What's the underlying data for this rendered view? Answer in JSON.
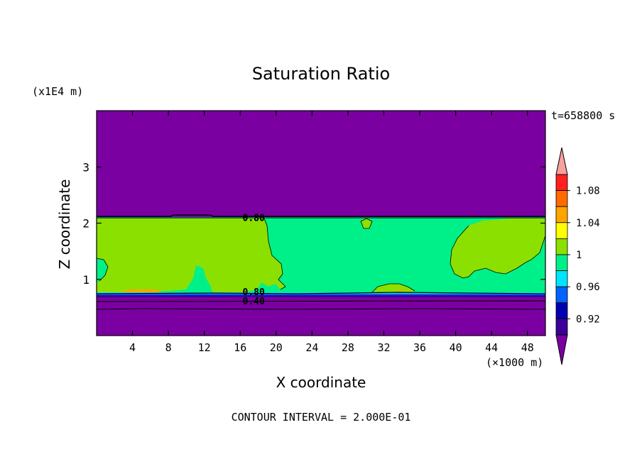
{
  "chart_data": {
    "type": "heatmap",
    "title": "Saturation Ratio",
    "xlabel": "X coordinate",
    "ylabel": "Z coordinate",
    "x_unit": "(×1000 m)",
    "y_unit": "(x1E4 m)",
    "time_label": "t=658800 s",
    "footer": "CONTOUR INTERVAL = 2.000E-01",
    "xlim": [
      0,
      50
    ],
    "ylim": [
      0,
      4
    ],
    "xticks": [
      4,
      8,
      12,
      16,
      20,
      24,
      28,
      32,
      36,
      40,
      44,
      48
    ],
    "yticks": [
      1,
      2,
      3
    ],
    "contour_labels": [
      {
        "text": "0.80",
        "x": 17.5,
        "y": 2.1
      },
      {
        "text": "0.80",
        "x": 17.5,
        "y": 2.1
      },
      {
        "text": "0.80",
        "x": 17.5,
        "y": 0.78
      },
      {
        "text": "0.40",
        "x": 17.5,
        "y": 0.62
      }
    ],
    "regions": [
      {
        "name": "upper-dry-layer",
        "value_class": "below 0.92",
        "color": "#7b00a2",
        "x": [
          0,
          50
        ],
        "z": [
          2.12,
          4.0
        ]
      },
      {
        "name": "cloud-layer",
        "value_class": "0.98-1",
        "color": "#00f089",
        "x": [
          0,
          50
        ],
        "z": [
          0.74,
          2.12
        ]
      },
      {
        "name": "lower-dry-layer",
        "value_class": "below 0.92",
        "color": "#7b00a2",
        "x": [
          0,
          50
        ],
        "z": [
          0,
          0.74
        ]
      }
    ],
    "colorbar": {
      "labels": [
        "1.08",
        "1.04",
        "1",
        "0.96",
        "0.92"
      ],
      "colors": [
        "#f7a0a0",
        "#ff2020",
        "#ff6a00",
        "#ffa500",
        "#ffff00",
        "#8ce000",
        "#00f089",
        "#00e5ff",
        "#0062ff",
        "#0000b0",
        "#3a0098",
        "#7b00a2"
      ]
    },
    "grid": false
  }
}
